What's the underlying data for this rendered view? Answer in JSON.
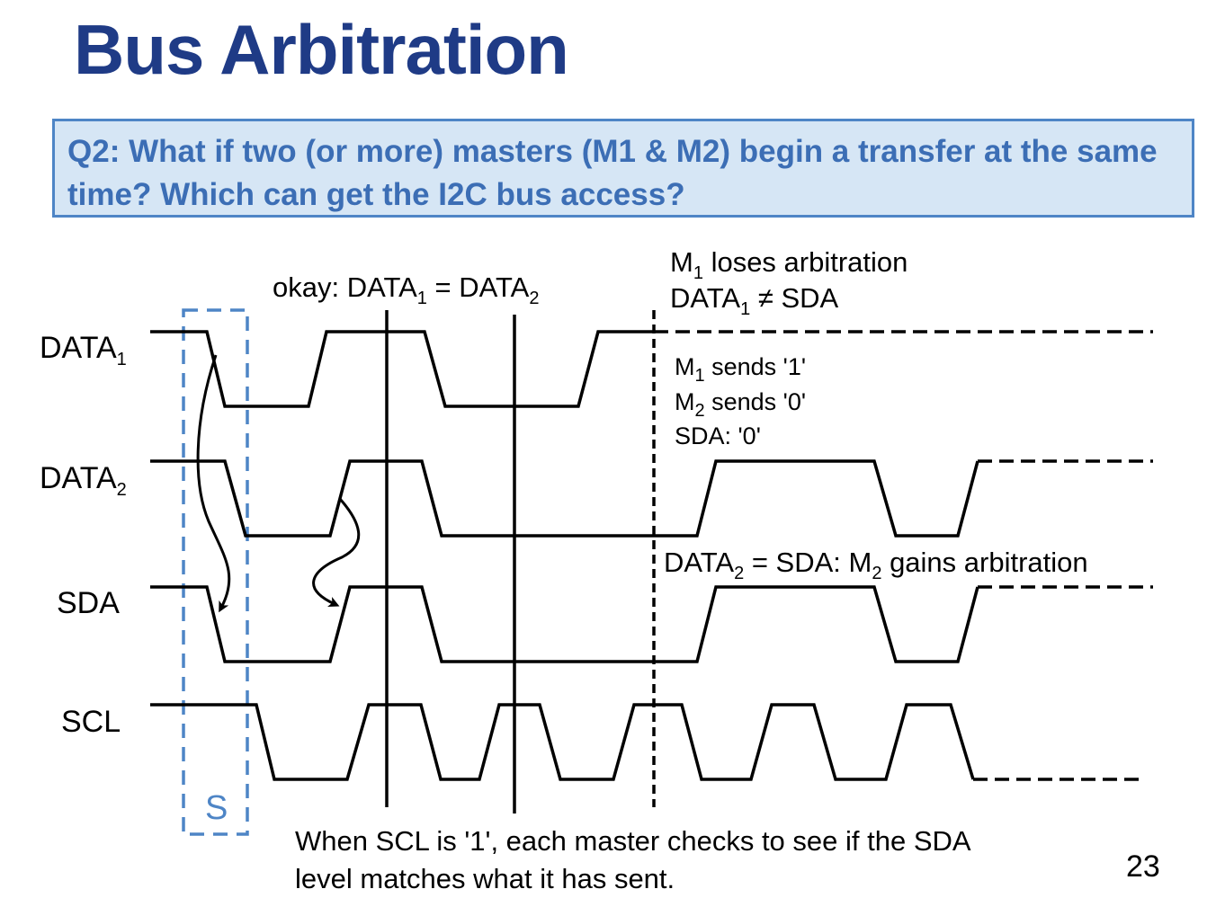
{
  "slide": {
    "title": "Bus Arbitration",
    "question": "Q2: What if two (or more) masters (M1 & M2) begin a transfer at the same time? Which can get the I2C bus access?",
    "page_number": "23",
    "footer_note": "When SCL is '1', each master checks to see if the SDA level matches what it has sent."
  },
  "diagram": {
    "signals": {
      "data1": {
        "name": "DATA",
        "sub": "1"
      },
      "data2": {
        "name": "DATA",
        "sub": "2"
      },
      "sda": "SDA",
      "scl": "SCL"
    },
    "start_label": "S",
    "okay_note": {
      "prefix": "okay: DATA",
      "sub1": "1",
      "mid": " = DATA",
      "sub2": "2"
    },
    "lose_note": {
      "line1_m": "M",
      "line1_sub": "1",
      "line1_rest": " loses arbitration",
      "line2_d": "DATA",
      "line2_sub": "1",
      "line2_rest": " ≠ SDA"
    },
    "sends_note": {
      "m1_m": "M",
      "m1_sub": "1",
      "m1_rest": " sends '1'",
      "m2_m": "M",
      "m2_sub": "2",
      "m2_rest": " sends '0'",
      "sda": "SDA: '0'"
    },
    "gain_note": {
      "d": "DATA",
      "d_sub": "2",
      "mid": " = SDA: M",
      "m_sub": "2",
      "rest": " gains arbitration"
    },
    "colors": {
      "title": "#1f3b86",
      "question_text": "#3c6eb5",
      "question_fill": "#d6e6f5",
      "question_border": "#4e85c6",
      "start_box": "#4e85c6"
    }
  }
}
